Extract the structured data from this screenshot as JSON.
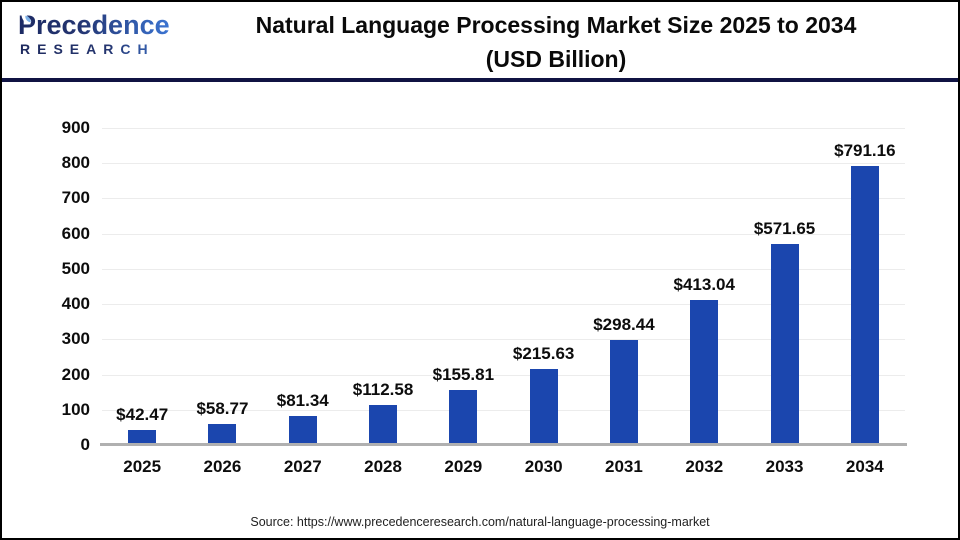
{
  "header": {
    "logo": {
      "brand": "Precedence",
      "sub": "RESEARCH"
    },
    "title_line1": "Natural Language Processing Market Size 2025 to 2034",
    "title_line2": "(USD Billion)"
  },
  "footer": {
    "source": "Source: https://www.precedenceresearch.com/natural-language-processing-market"
  },
  "colors": {
    "bar_blue": "#1b46ae",
    "header_rule_navy": "#101343",
    "gridline_gray": "#ececec",
    "axis_gray": "#b0b0b0",
    "logo_navy": "#1c2a63",
    "logo_blue": "#3b74d2",
    "text_black": "#0d0d0d"
  },
  "chart_data": {
    "type": "bar",
    "title": "Natural Language Processing Market Size 2025 to 2034 (USD Billion)",
    "categories": [
      "2025",
      "2026",
      "2027",
      "2028",
      "2029",
      "2030",
      "2031",
      "2032",
      "2033",
      "2034"
    ],
    "values": [
      42.47,
      58.77,
      81.34,
      112.58,
      155.81,
      215.63,
      298.44,
      413.04,
      571.65,
      791.16
    ],
    "value_labels": [
      "$42.47",
      "$58.77",
      "$81.34",
      "$112.58",
      "$155.81",
      "$215.63",
      "$298.44",
      "$413.04",
      "$571.65",
      "$791.16"
    ],
    "xlabel": "",
    "ylabel": "",
    "ylim": [
      0,
      900
    ],
    "ytick_step": 100,
    "yticks": [
      0,
      100,
      200,
      300,
      400,
      500,
      600,
      700,
      800,
      900
    ],
    "grid": true,
    "legend": false,
    "bar_color": "#1b46ae",
    "unit": "USD Billion"
  }
}
